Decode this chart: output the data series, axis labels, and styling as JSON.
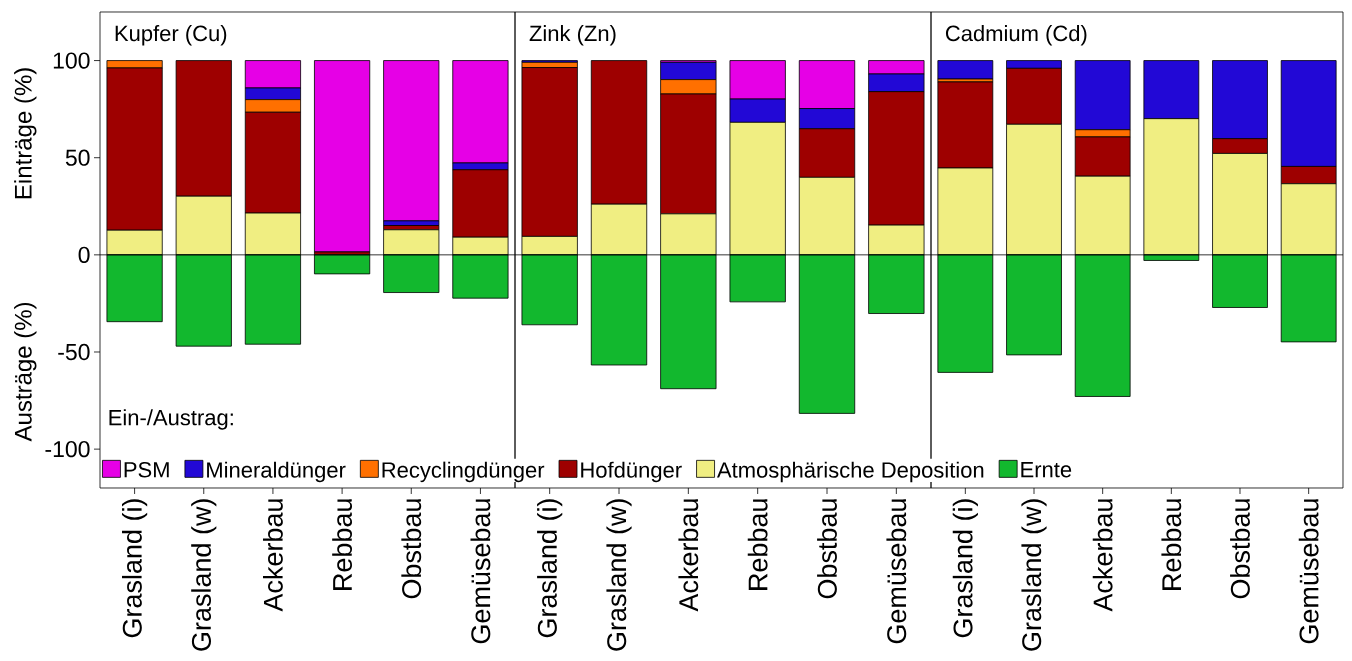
{
  "chart_data": [
    {
      "type": "bar",
      "title": "Kupfer (Cu)",
      "ylabel": "Einträge (%)",
      "annotations": [
        "Austräge (%)"
      ],
      "stacked": true,
      "categories": [
        "Grasland (i)",
        "Grasland (w)",
        "Ackerbau",
        "Rebbau",
        "Obstbau",
        "Gemüsebau"
      ],
      "series": [
        {
          "name": "Atmosphärische Deposition",
          "color": "#f0ee82",
          "values": [
            12.7,
            30.2,
            21.5,
            0,
            12.9,
            9.1
          ]
        },
        {
          "name": "Hofdünger",
          "color": "#9e0000",
          "values": [
            83.5,
            69.8,
            51.9,
            1.5,
            2.2,
            34.7
          ]
        },
        {
          "name": "Recyclingdünger",
          "color": "#ff7000",
          "values": [
            3.8,
            0,
            6.5,
            0,
            0,
            0
          ]
        },
        {
          "name": "Mineraldünger",
          "color": "#2208d6",
          "values": [
            0,
            0,
            6.0,
            0,
            2.4,
            3.5
          ]
        },
        {
          "name": "PSM",
          "color": "#e600e6",
          "values": [
            0,
            0,
            14.1,
            98.5,
            82.5,
            52.7
          ]
        },
        {
          "name": "Ernte",
          "color": "#12b82e",
          "values": [
            -34.4,
            -47.0,
            -46.0,
            -9.8,
            -19.4,
            -22.3
          ]
        }
      ],
      "ylim": [
        -120,
        125
      ],
      "yticks": [
        -100,
        -50,
        0,
        50,
        100
      ],
      "legend": "bottom",
      "legend_title": "Ein-/Austrag:",
      "ref_lines": [
        {
          "axis": "y",
          "value": 0
        }
      ]
    },
    {
      "type": "bar",
      "title": "Zink (Zn)",
      "stacked": true,
      "categories": [
        "Grasland (i)",
        "Grasland (w)",
        "Ackerbau",
        "Rebbau",
        "Obstbau",
        "Gemüsebau"
      ],
      "series": [
        {
          "color": "#f0ee82",
          "values": [
            9.5,
            26.1,
            21.1,
            68.2,
            39.9,
            15.3
          ]
        },
        {
          "color": "#9e0000",
          "values": [
            86.9,
            73.9,
            61.7,
            0,
            25.0,
            68.7
          ]
        },
        {
          "color": "#ff7000",
          "values": [
            2.7,
            0,
            7.4,
            0,
            0,
            0
          ]
        },
        {
          "color": "#2208d6",
          "values": [
            0.9,
            0,
            8.9,
            12.0,
            10.4,
            9.1
          ]
        },
        {
          "color": "#e600e6",
          "values": [
            0,
            0,
            0.9,
            19.8,
            24.7,
            6.9
          ]
        },
        {
          "color": "#12b82e",
          "values": [
            -36.0,
            -56.7,
            -68.9,
            -24.2,
            -81.6,
            -30.2
          ]
        }
      ],
      "ylim": [
        -120,
        125
      ],
      "tick_labels": "x",
      "ref_lines": [
        {
          "axis": "y",
          "value": 0
        }
      ]
    },
    {
      "type": "bar",
      "title": "Cadmium (Cd)",
      "stacked": true,
      "categories": [
        "Grasland (i)",
        "Grasland (w)",
        "Ackerbau",
        "Rebbau",
        "Obstbau",
        "Gemüsebau"
      ],
      "series": [
        {
          "color": "#f0ee82",
          "values": [
            44.7,
            67.2,
            40.5,
            70.1,
            52.2,
            36.6
          ]
        },
        {
          "color": "#9e0000",
          "values": [
            44.3,
            28.8,
            20.2,
            0,
            7.6,
            8.9
          ]
        },
        {
          "color": "#ff7000",
          "values": [
            1.5,
            0,
            3.7,
            0,
            0,
            0
          ]
        },
        {
          "color": "#2208d6",
          "values": [
            9.5,
            4.0,
            35.6,
            29.9,
            40.2,
            54.5
          ]
        },
        {
          "color": "#e600e6",
          "values": [
            0,
            0,
            0,
            0,
            0,
            0
          ]
        },
        {
          "color": "#12b82e",
          "values": [
            -60.5,
            -51.5,
            -72.9,
            -2.9,
            -27.1,
            -44.8
          ]
        }
      ],
      "ylim": [
        -120,
        125
      ],
      "tick_labels": "x",
      "ref_lines": [
        {
          "axis": "y",
          "value": 0
        }
      ]
    }
  ]
}
